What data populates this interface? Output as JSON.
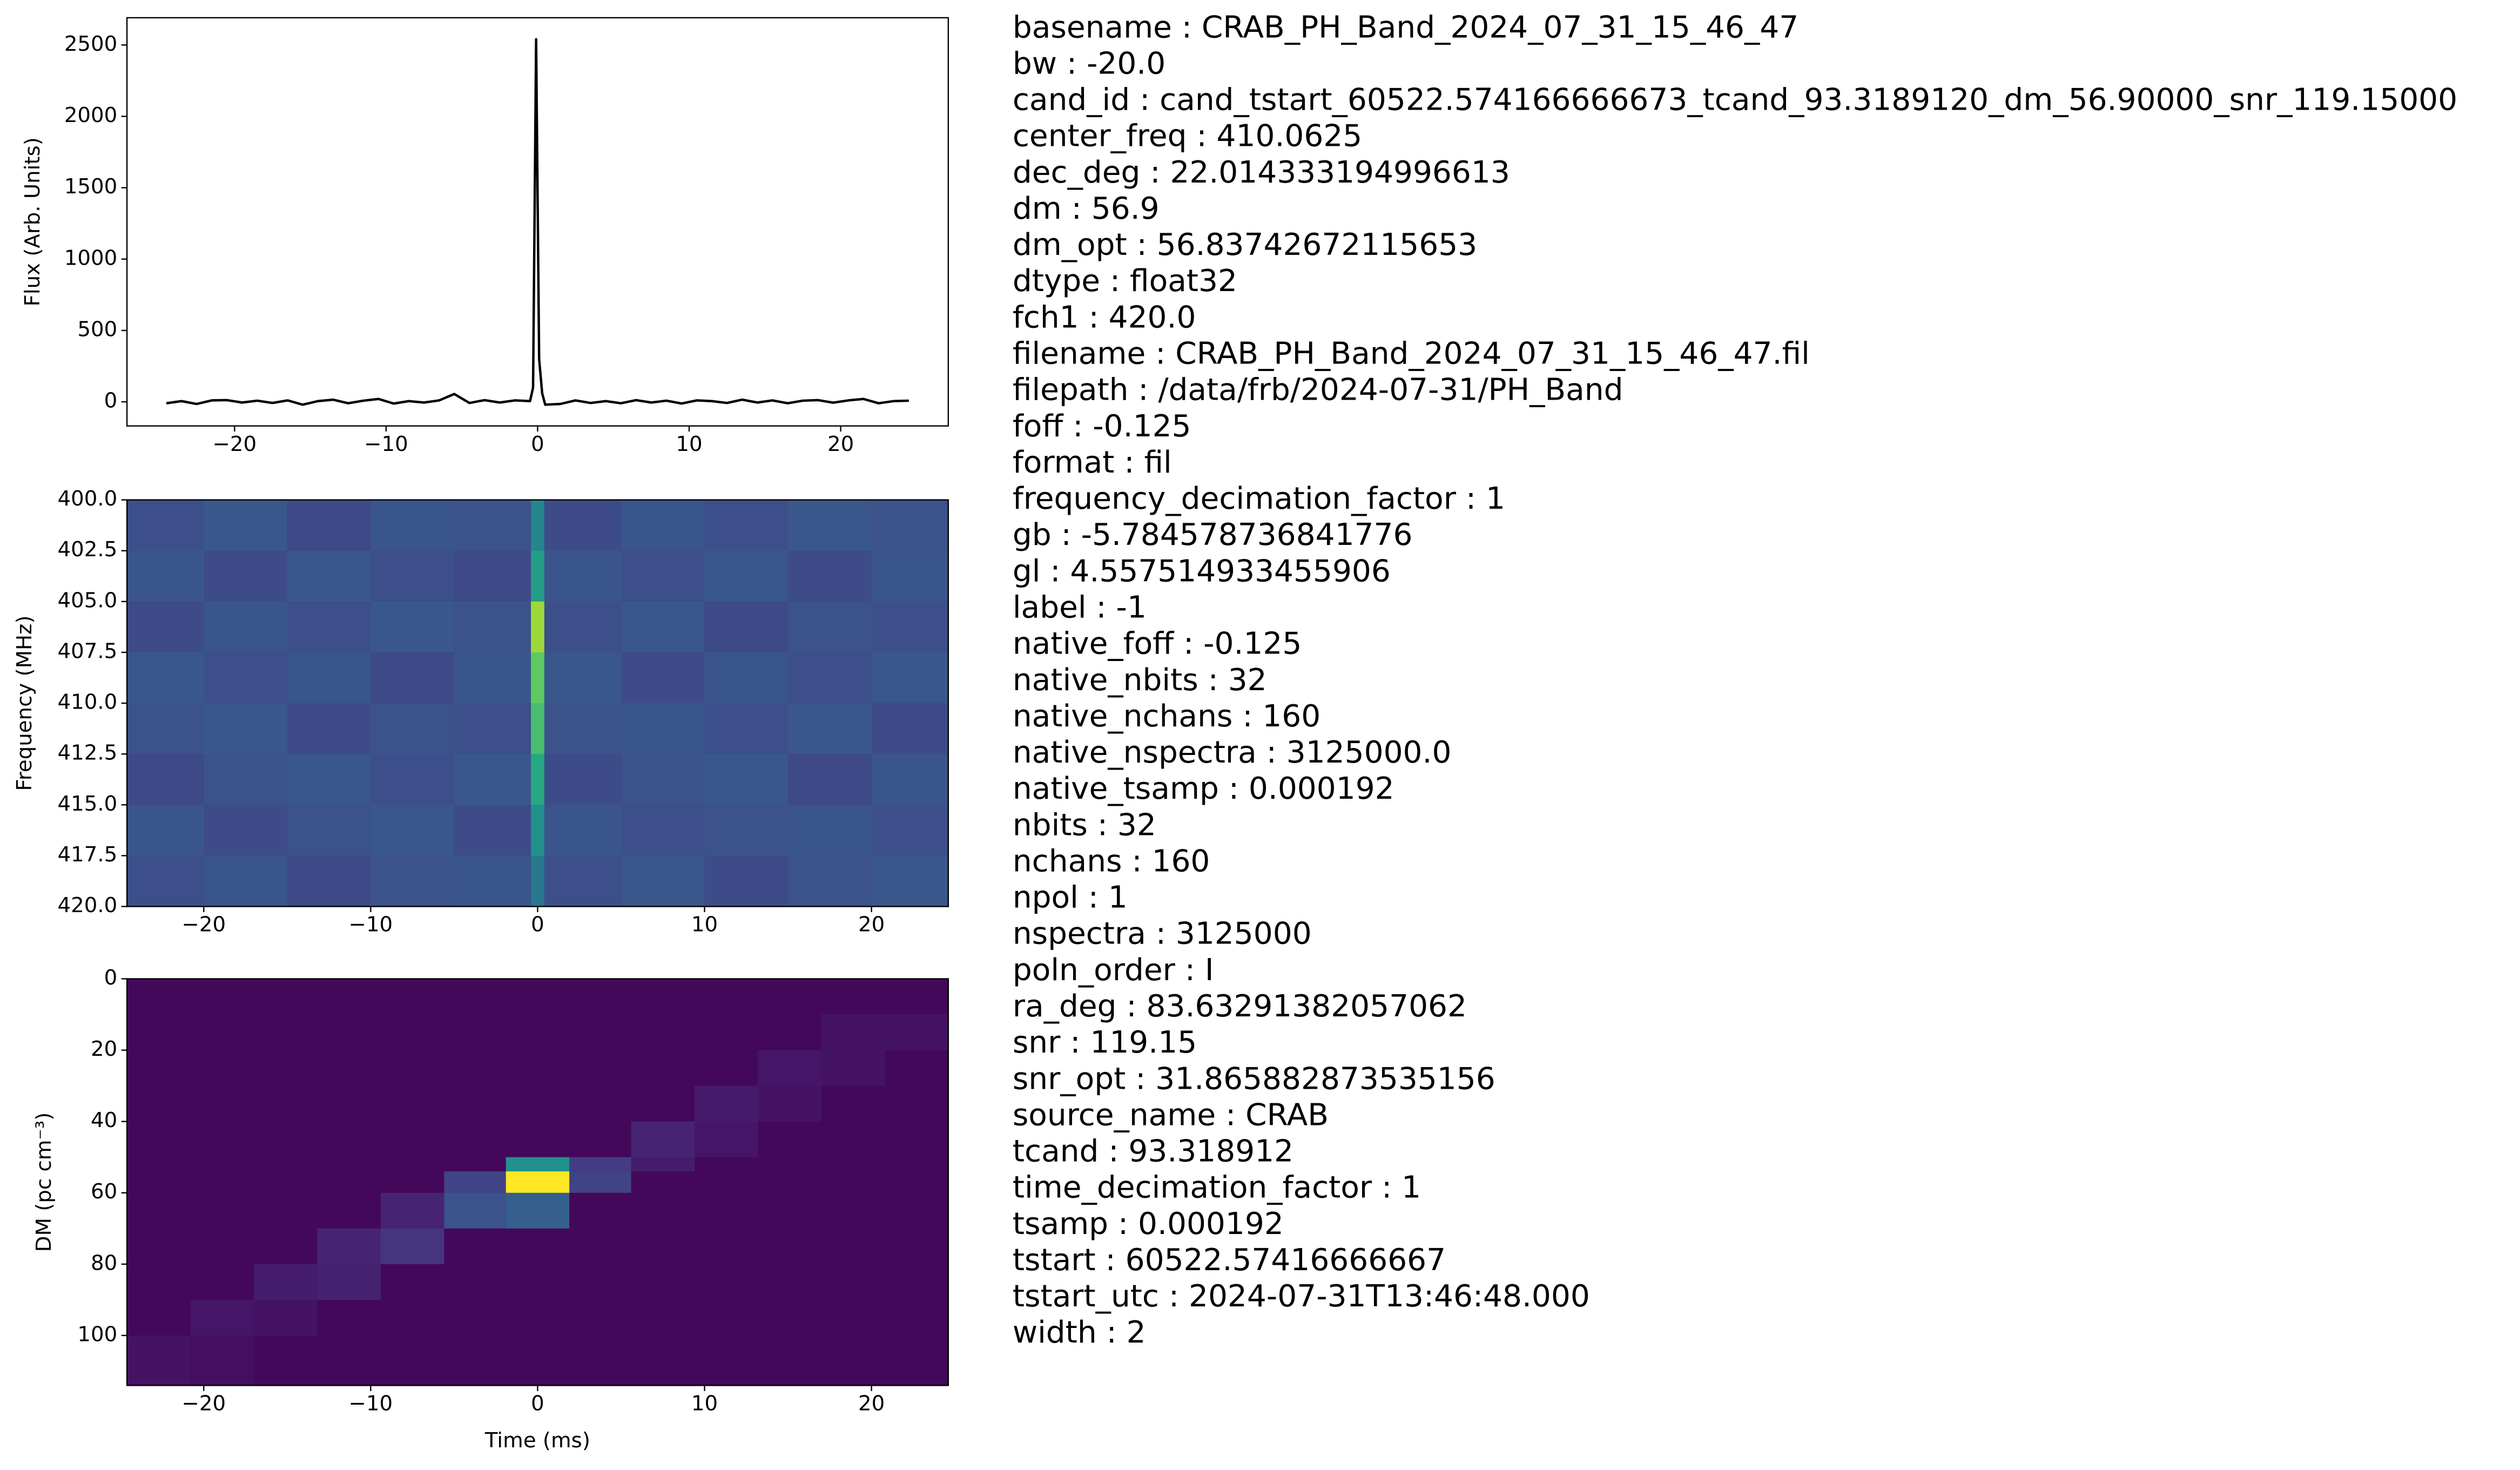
{
  "chart_data": [
    {
      "type": "line",
      "color": "#000000",
      "ylabel": "Flux (Arb. Units)",
      "x": [
        -24.5,
        -23.5,
        -22.5,
        -21.5,
        -20.5,
        -19.5,
        -18.5,
        -17.5,
        -16.5,
        -15.5,
        -14.5,
        -13.5,
        -12.5,
        -11.5,
        -10.5,
        -9.5,
        -8.5,
        -7.5,
        -6.5,
        -5.5,
        -4.5,
        -3.5,
        -2.5,
        -1.5,
        -0.5,
        -0.3,
        -0.1,
        0.1,
        0.3,
        0.5,
        1.5,
        2.5,
        3.5,
        4.5,
        5.5,
        6.5,
        7.5,
        8.5,
        9.5,
        10.5,
        11.5,
        12.5,
        13.5,
        14.5,
        15.5,
        16.5,
        17.5,
        18.5,
        19.5,
        20.5,
        21.5,
        22.5,
        23.5,
        24.5
      ],
      "values": [
        -10,
        5,
        -15,
        10,
        12,
        -5,
        8,
        -8,
        10,
        -20,
        5,
        15,
        -10,
        8,
        20,
        -12,
        5,
        -5,
        10,
        55,
        -8,
        12,
        -5,
        10,
        5,
        100,
        2540,
        300,
        60,
        -20,
        -15,
        10,
        -8,
        5,
        -10,
        12,
        -5,
        8,
        -12,
        10,
        5,
        -8,
        15,
        -5,
        10,
        -10,
        8,
        12,
        -6,
        10,
        20,
        -10,
        5,
        8
      ],
      "xlim": [
        -27.1,
        27.1
      ],
      "ylim": [
        -169,
        2691
      ],
      "xticks": [
        {
          "value": -20,
          "label": "−20"
        },
        {
          "value": -10,
          "label": "−10"
        },
        0,
        10,
        20
      ],
      "yticks": [
        0,
        500,
        1000,
        1500,
        2000,
        2500
      ]
    },
    {
      "type": "heatmap",
      "colormap": "viridis",
      "zlim": [
        0,
        1
      ],
      "ylabel": "Frequency (MHz)",
      "xbins": [
        -24.6,
        -20,
        -15,
        -10,
        -5,
        -0.4,
        0.4,
        5,
        10,
        15,
        20,
        24.6
      ],
      "ybins": [
        400,
        402.5,
        405,
        407.5,
        410,
        412.5,
        415,
        417.5,
        420
      ],
      "z": [
        [
          0.24,
          0.27,
          0.22,
          0.26,
          0.25,
          0.45,
          0.23,
          0.26,
          0.24,
          0.27,
          0.25
        ],
        [
          0.26,
          0.23,
          0.27,
          0.24,
          0.22,
          0.55,
          0.26,
          0.24,
          0.27,
          0.23,
          0.26
        ],
        [
          0.23,
          0.26,
          0.24,
          0.27,
          0.25,
          0.85,
          0.24,
          0.27,
          0.22,
          0.25,
          0.24
        ],
        [
          0.27,
          0.24,
          0.26,
          0.22,
          0.26,
          0.75,
          0.27,
          0.23,
          0.26,
          0.24,
          0.27
        ],
        [
          0.25,
          0.27,
          0.23,
          0.25,
          0.24,
          0.7,
          0.25,
          0.26,
          0.24,
          0.27,
          0.23
        ],
        [
          0.22,
          0.25,
          0.27,
          0.24,
          0.27,
          0.6,
          0.23,
          0.25,
          0.27,
          0.22,
          0.26
        ],
        [
          0.26,
          0.23,
          0.25,
          0.27,
          0.23,
          0.5,
          0.26,
          0.24,
          0.25,
          0.26,
          0.24
        ],
        [
          0.24,
          0.26,
          0.22,
          0.25,
          0.26,
          0.4,
          0.24,
          0.27,
          0.23,
          0.25,
          0.27
        ]
      ],
      "xlim": [
        -24.6,
        24.6
      ],
      "ylim": [
        420,
        400
      ],
      "xticks": [
        {
          "value": -20,
          "label": "−20"
        },
        {
          "value": -10,
          "label": "−10"
        },
        0,
        10,
        20
      ],
      "yticks": [
        {
          "value": 400,
          "label": "400.0"
        },
        402.5,
        {
          "value": 405,
          "label": "405.0"
        },
        407.5,
        {
          "value": 410,
          "label": "410.0"
        },
        412.5,
        {
          "value": 415,
          "label": "415.0"
        },
        417.5,
        {
          "value": 420,
          "label": "420.0"
        }
      ]
    },
    {
      "type": "heatmap",
      "colormap": "viridis",
      "zlim": [
        0,
        1
      ],
      "ylabel": "DM (pc cm⁻³)",
      "xlabel": "Time (ms)",
      "xbins": [
        -24.6,
        -20.8,
        -17.0,
        -13.2,
        -9.4,
        -5.6,
        -1.9,
        1.9,
        5.6,
        9.4,
        13.2,
        17.0,
        20.8,
        24.6
      ],
      "ybins": [
        0,
        10,
        20,
        30,
        40,
        50,
        54,
        60,
        70,
        80,
        90,
        100,
        114
      ],
      "z": [
        [
          0.02,
          0.02,
          0.02,
          0.02,
          0.02,
          0.02,
          0.02,
          0.02,
          0.02,
          0.02,
          0.02,
          0.02,
          0.02
        ],
        [
          0.02,
          0.02,
          0.02,
          0.02,
          0.02,
          0.02,
          0.02,
          0.02,
          0.02,
          0.02,
          0.02,
          0.05,
          0.05
        ],
        [
          0.02,
          0.02,
          0.02,
          0.02,
          0.02,
          0.02,
          0.02,
          0.02,
          0.02,
          0.02,
          0.06,
          0.05,
          0.02
        ],
        [
          0.02,
          0.02,
          0.02,
          0.02,
          0.02,
          0.02,
          0.02,
          0.02,
          0.02,
          0.07,
          0.05,
          0.02,
          0.02
        ],
        [
          0.02,
          0.02,
          0.02,
          0.02,
          0.02,
          0.02,
          0.02,
          0.02,
          0.1,
          0.06,
          0.02,
          0.02,
          0.02
        ],
        [
          0.02,
          0.02,
          0.02,
          0.02,
          0.02,
          0.02,
          0.5,
          0.18,
          0.08,
          0.02,
          0.02,
          0.02,
          0.02
        ],
        [
          0.02,
          0.02,
          0.02,
          0.02,
          0.02,
          0.2,
          1.0,
          0.2,
          0.02,
          0.02,
          0.02,
          0.02,
          0.02
        ],
        [
          0.02,
          0.02,
          0.02,
          0.02,
          0.1,
          0.25,
          0.3,
          0.02,
          0.02,
          0.02,
          0.02,
          0.02,
          0.02
        ],
        [
          0.02,
          0.02,
          0.02,
          0.1,
          0.15,
          0.02,
          0.02,
          0.02,
          0.02,
          0.02,
          0.02,
          0.02,
          0.02
        ],
        [
          0.02,
          0.02,
          0.08,
          0.09,
          0.02,
          0.02,
          0.02,
          0.02,
          0.02,
          0.02,
          0.02,
          0.02,
          0.02
        ],
        [
          0.02,
          0.06,
          0.05,
          0.02,
          0.02,
          0.02,
          0.02,
          0.02,
          0.02,
          0.02,
          0.02,
          0.02,
          0.02
        ],
        [
          0.05,
          0.04,
          0.02,
          0.02,
          0.02,
          0.02,
          0.02,
          0.02,
          0.02,
          0.02,
          0.02,
          0.02,
          0.02
        ]
      ],
      "xlim": [
        -24.6,
        24.6
      ],
      "ylim": [
        114,
        0
      ],
      "xticks": [
        {
          "value": -20,
          "label": "−20"
        },
        {
          "value": -10,
          "label": "−10"
        },
        0,
        10,
        20
      ],
      "yticks": [
        0,
        20,
        40,
        60,
        80,
        100
      ]
    }
  ],
  "info_lines": [
    "basename : CRAB_PH_Band_2024_07_31_15_46_47",
    "bw : -20.0",
    "cand_id : cand_tstart_60522.574166666673_tcand_93.3189120_dm_56.90000_snr_119.15000",
    "center_freq : 410.0625",
    "dec_deg : 22.014333194996613",
    "dm : 56.9",
    "dm_opt : 56.83742672115653",
    "dtype : float32",
    "fch1 : 420.0",
    "filename : CRAB_PH_Band_2024_07_31_15_46_47.fil",
    "filepath : /data/frb/2024-07-31/PH_Band",
    "foff : -0.125",
    "format : fil",
    "frequency_decimation_factor : 1",
    "gb : -5.784578736841776",
    "gl : 4.557514933455906",
    "label : -1",
    "native_foff : -0.125",
    "native_nbits : 32",
    "native_nchans : 160",
    "native_nspectra : 3125000.0",
    "native_tsamp : 0.000192",
    "nbits : 32",
    "nchans : 160",
    "npol : 1",
    "nspectra : 3125000",
    "poln_order : I",
    "ra_deg : 83.63291382057062",
    "snr : 119.15",
    "snr_opt : 31.865882873535156",
    "source_name : CRAB",
    "tcand : 93.318912",
    "time_decimation_factor : 1",
    "tsamp : 0.000192",
    "tstart : 60522.57416666667",
    "tstart_utc : 2024-07-31T13:46:48.000",
    "width : 2"
  ]
}
